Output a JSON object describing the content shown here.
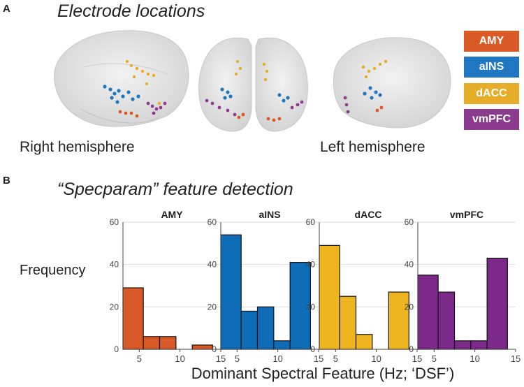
{
  "panel_a": {
    "letter": "A",
    "title": "Electrode locations",
    "right_label": "Right hemisphere",
    "left_label": "Left hemisphere"
  },
  "legend": [
    {
      "label": "AMY",
      "color": "#d95a27"
    },
    {
      "label": "aINS",
      "color": "#1f77c2"
    },
    {
      "label": "dACC",
      "color": "#e6ad28"
    },
    {
      "label": "vmPFC",
      "color": "#8b3c8f"
    }
  ],
  "panel_b": {
    "letter": "B",
    "title": "“Specparam” feature detection"
  },
  "chart_data": {
    "type": "bar",
    "ylabel": "Frequency",
    "xlabel": "Dominant Spectral Feature (Hz; ‘DSF’)",
    "bin_edges": [
      3,
      5.5,
      7.5,
      9.5,
      11.5,
      14
    ],
    "xticks": [
      5,
      10,
      15
    ],
    "yticks": [
      0,
      20,
      40,
      60
    ],
    "xlim": [
      3,
      15
    ],
    "ylim": [
      0,
      60
    ],
    "panels": [
      {
        "title": "AMY",
        "color": "#d95a27",
        "values": [
          29,
          6,
          6,
          0,
          2
        ]
      },
      {
        "title": "aINS",
        "color": "#0f6db8",
        "values": [
          54,
          18,
          20,
          4,
          41
        ]
      },
      {
        "title": "dACC",
        "color": "#efb521",
        "values": [
          49,
          25,
          7,
          0,
          27
        ]
      },
      {
        "title": "vmPFC",
        "color": "#7b2a8a",
        "values": [
          35,
          27,
          4,
          4,
          43
        ]
      }
    ]
  }
}
